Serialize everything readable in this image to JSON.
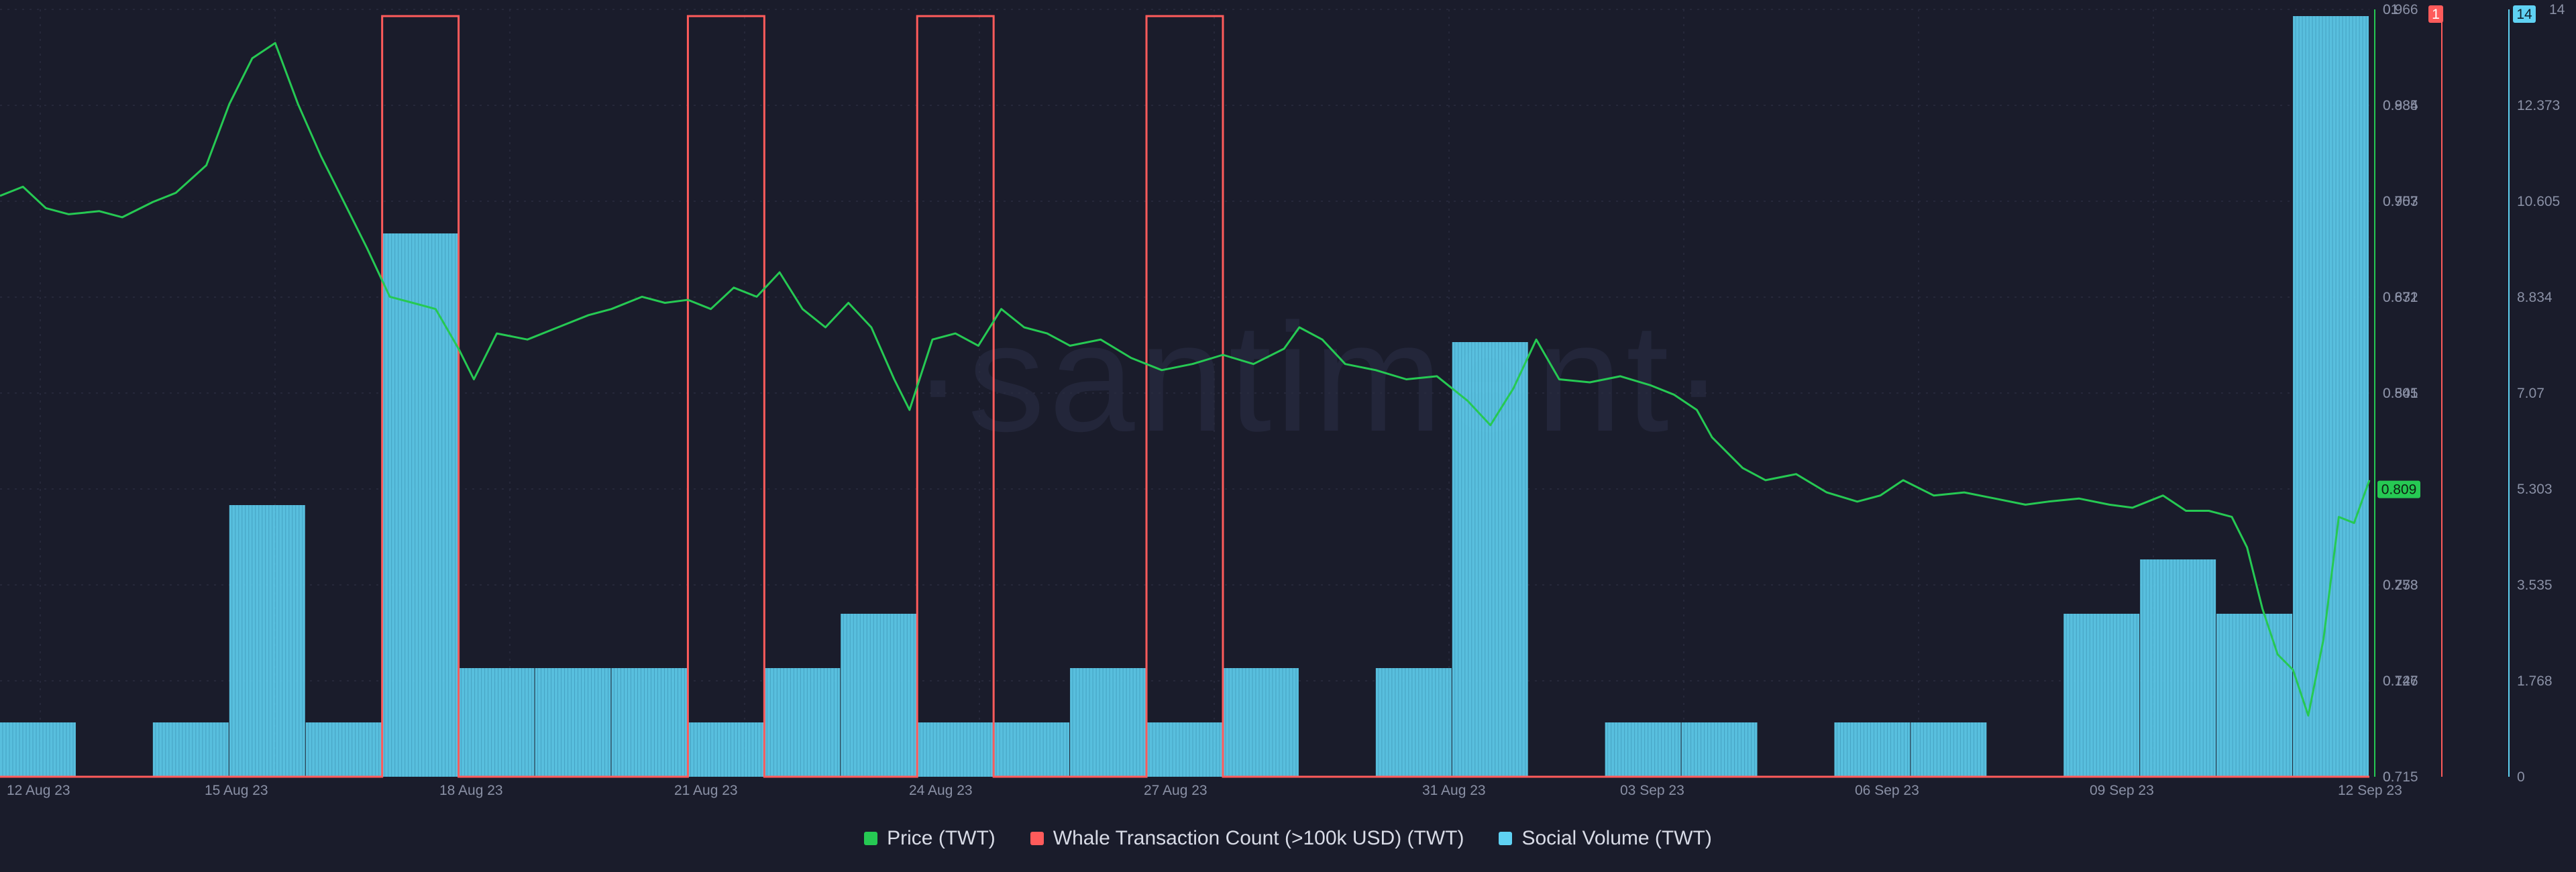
{
  "watermark": "·santiment·",
  "chart_data": {
    "type": "bar+line",
    "title": "",
    "x_start": "2023-08-11",
    "x_end": "2023-09-12",
    "x_ticks": [
      "12 Aug 23",
      "15 Aug 23",
      "18 Aug 23",
      "21 Aug 23",
      "24 Aug 23",
      "27 Aug 23",
      "31 Aug 23",
      "03 Sep 23",
      "06 Sep 23",
      "09 Sep 23",
      "12 Sep 23"
    ],
    "grid": true,
    "legend_position": "bottom-center",
    "axes": {
      "price": {
        "color": "#26c953",
        "ticks": [
          "0.966",
          "0.935",
          "0.903",
          "0.872",
          "0.841",
          "0.778",
          "0.747",
          "0.715"
        ],
        "range": [
          0.715,
          0.966
        ],
        "current": "0.809"
      },
      "whale": {
        "color": "#ff5b5b",
        "ticks": [
          "0.884",
          "0.757",
          "0.631",
          "0.505",
          "0.379",
          "0.253",
          "0.126",
          "0"
        ],
        "range": [
          0,
          1
        ],
        "top_label": "1",
        "partial_top": "01"
      },
      "social": {
        "color": "#5fd1f2",
        "ticks": [
          "12.373",
          "10.605",
          "8.834",
          "7.07",
          "5.303",
          "3.535",
          "1.768",
          "0"
        ],
        "range": [
          0,
          14
        ],
        "top_label": "14",
        "partial_top": "14"
      }
    },
    "series": [
      {
        "name": "Social Volume (TWT)",
        "type": "bar",
        "color": "#5fd1f2",
        "values": [
          1,
          0,
          1,
          5,
          1,
          10,
          2,
          2,
          2,
          1,
          2,
          3,
          1,
          1,
          2,
          1,
          2,
          0,
          2,
          8,
          0,
          1,
          1,
          0,
          1,
          1,
          0,
          3,
          4,
          3,
          14
        ]
      },
      {
        "name": "Whale Transaction Count (>100k USD) (TWT)",
        "type": "line",
        "color": "#ff5b5b",
        "values": [
          0,
          0,
          0,
          0,
          0,
          1,
          0,
          0,
          0,
          1,
          0,
          0,
          1,
          0,
          0,
          1,
          0,
          0,
          0,
          0,
          0,
          0,
          0,
          0,
          0,
          0,
          0,
          0,
          0,
          0,
          0
        ]
      },
      {
        "name": "Price (TWT)",
        "type": "line",
        "color": "#26c953",
        "points": [
          [
            0,
            0.905
          ],
          [
            0.3,
            0.908
          ],
          [
            0.6,
            0.901
          ],
          [
            0.9,
            0.899
          ],
          [
            1.3,
            0.9
          ],
          [
            1.6,
            0.898
          ],
          [
            2.0,
            0.903
          ],
          [
            2.3,
            0.906
          ],
          [
            2.7,
            0.915
          ],
          [
            3.0,
            0.935
          ],
          [
            3.3,
            0.95
          ],
          [
            3.6,
            0.955
          ],
          [
            3.9,
            0.935
          ],
          [
            4.2,
            0.918
          ],
          [
            4.5,
            0.903
          ],
          [
            4.8,
            0.888
          ],
          [
            5.1,
            0.872
          ],
          [
            5.4,
            0.87
          ],
          [
            5.7,
            0.868
          ],
          [
            6.0,
            0.855
          ],
          [
            6.2,
            0.845
          ],
          [
            6.5,
            0.86
          ],
          [
            6.9,
            0.858
          ],
          [
            7.3,
            0.862
          ],
          [
            7.7,
            0.866
          ],
          [
            8.0,
            0.868
          ],
          [
            8.4,
            0.872
          ],
          [
            8.7,
            0.87
          ],
          [
            9.0,
            0.871
          ],
          [
            9.3,
            0.868
          ],
          [
            9.6,
            0.875
          ],
          [
            9.9,
            0.872
          ],
          [
            10.2,
            0.88
          ],
          [
            10.5,
            0.868
          ],
          [
            10.8,
            0.862
          ],
          [
            11.1,
            0.87
          ],
          [
            11.4,
            0.862
          ],
          [
            11.7,
            0.845
          ],
          [
            11.9,
            0.835
          ],
          [
            12.2,
            0.858
          ],
          [
            12.5,
            0.86
          ],
          [
            12.8,
            0.856
          ],
          [
            13.1,
            0.868
          ],
          [
            13.4,
            0.862
          ],
          [
            13.7,
            0.86
          ],
          [
            14.0,
            0.856
          ],
          [
            14.4,
            0.858
          ],
          [
            14.8,
            0.852
          ],
          [
            15.2,
            0.848
          ],
          [
            15.6,
            0.85
          ],
          [
            16.0,
            0.853
          ],
          [
            16.4,
            0.85
          ],
          [
            16.8,
            0.855
          ],
          [
            17.0,
            0.862
          ],
          [
            17.3,
            0.858
          ],
          [
            17.6,
            0.85
          ],
          [
            18.0,
            0.848
          ],
          [
            18.4,
            0.845
          ],
          [
            18.8,
            0.846
          ],
          [
            19.2,
            0.838
          ],
          [
            19.5,
            0.83
          ],
          [
            19.8,
            0.842
          ],
          [
            20.1,
            0.858
          ],
          [
            20.4,
            0.845
          ],
          [
            20.8,
            0.844
          ],
          [
            21.2,
            0.846
          ],
          [
            21.6,
            0.843
          ],
          [
            21.9,
            0.84
          ],
          [
            22.2,
            0.835
          ],
          [
            22.4,
            0.826
          ],
          [
            22.8,
            0.816
          ],
          [
            23.1,
            0.812
          ],
          [
            23.5,
            0.814
          ],
          [
            23.9,
            0.808
          ],
          [
            24.3,
            0.805
          ],
          [
            24.6,
            0.807
          ],
          [
            24.9,
            0.812
          ],
          [
            25.3,
            0.807
          ],
          [
            25.7,
            0.808
          ],
          [
            26.1,
            0.806
          ],
          [
            26.5,
            0.804
          ],
          [
            26.8,
            0.805
          ],
          [
            27.2,
            0.806
          ],
          [
            27.6,
            0.804
          ],
          [
            27.9,
            0.803
          ],
          [
            28.3,
            0.807
          ],
          [
            28.6,
            0.802
          ],
          [
            28.9,
            0.802
          ],
          [
            29.2,
            0.8
          ],
          [
            29.4,
            0.79
          ],
          [
            29.6,
            0.77
          ],
          [
            29.8,
            0.755
          ],
          [
            30.0,
            0.75
          ],
          [
            30.2,
            0.735
          ],
          [
            30.4,
            0.76
          ],
          [
            30.6,
            0.8
          ],
          [
            30.8,
            0.798
          ],
          [
            31.0,
            0.812
          ]
        ]
      }
    ]
  },
  "legend": [
    {
      "label": "Price (TWT)",
      "color": "#26c953"
    },
    {
      "label": "Whale Transaction Count (>100k USD) (TWT)",
      "color": "#ff5b5b"
    },
    {
      "label": "Social Volume (TWT)",
      "color": "#5fd1f2"
    }
  ]
}
